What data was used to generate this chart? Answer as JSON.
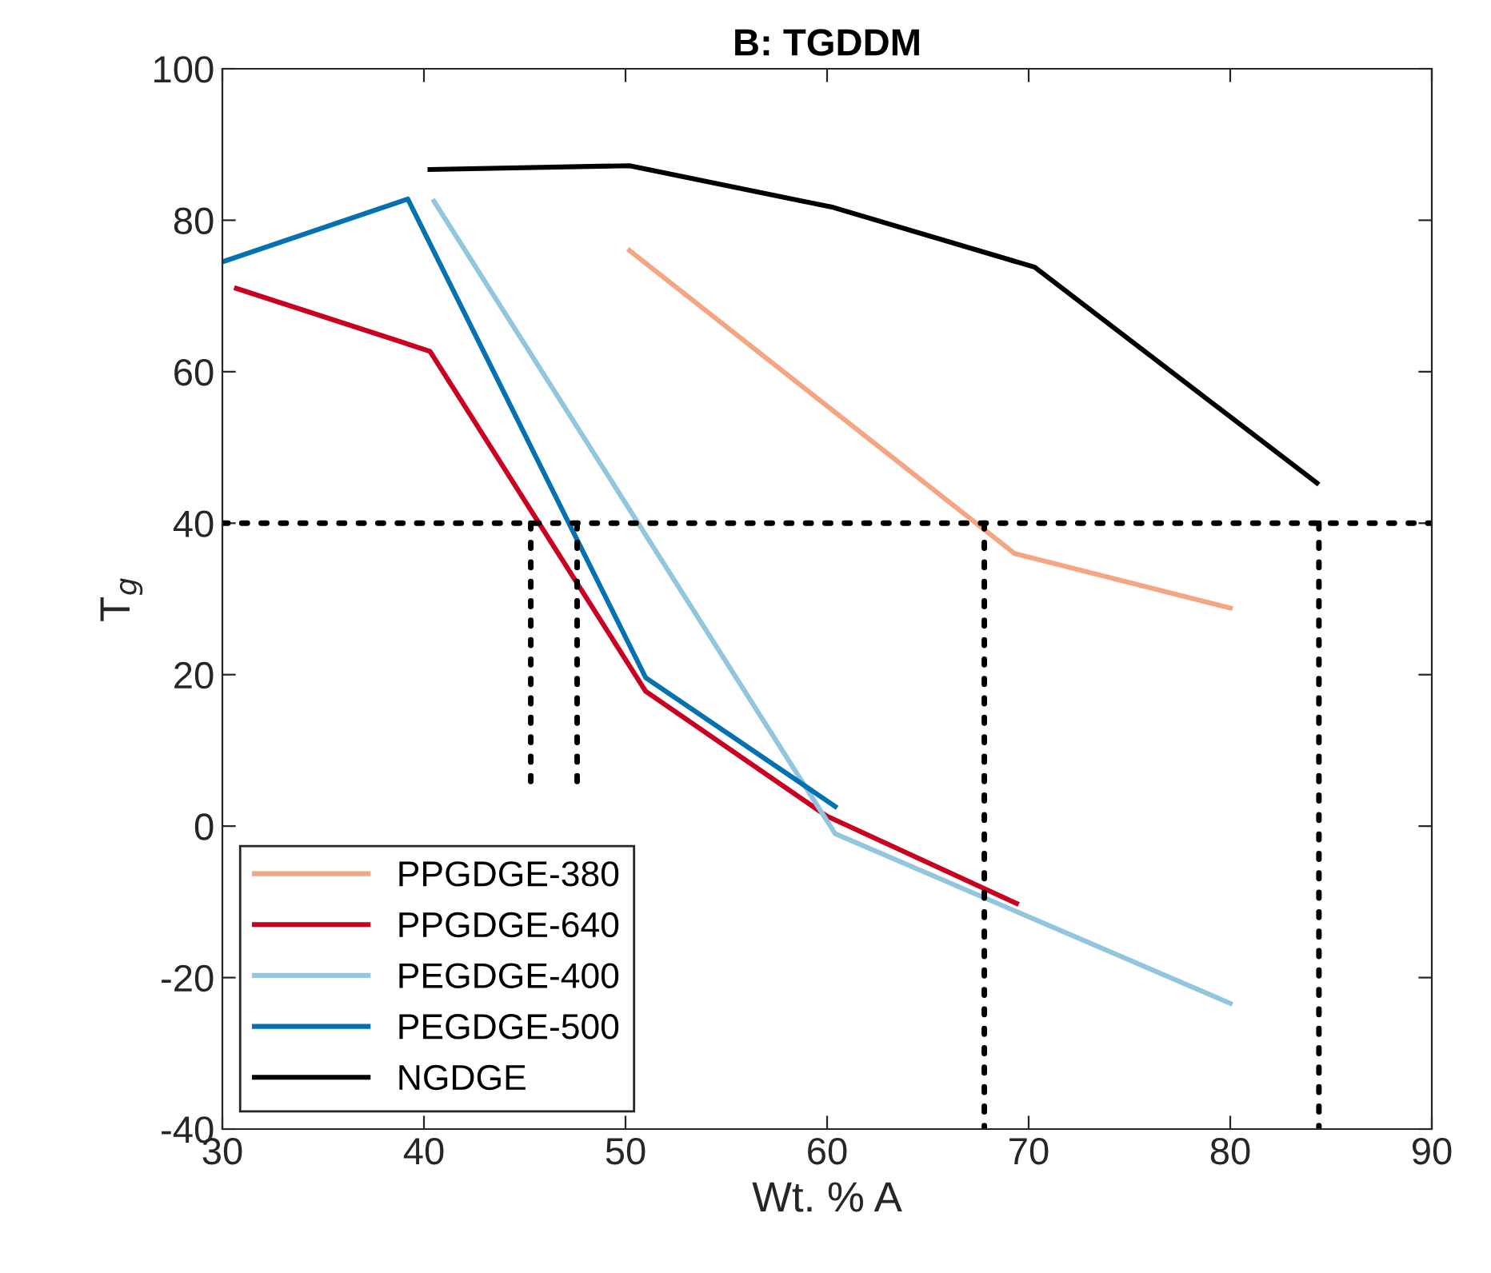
{
  "chart_data": {
    "type": "line",
    "title": "B: TGDDM",
    "xlabel": "Wt. % A",
    "ylabel": "T$_{g}$",
    "xlim": [
      30,
      90
    ],
    "xticks": [
      30,
      40,
      50,
      60,
      70,
      80,
      90
    ],
    "ylim": [
      -40,
      100
    ],
    "yticks": [
      -40,
      -20,
      0,
      20,
      40,
      60,
      80,
      100
    ],
    "grid": false,
    "legend": "bottom left",
    "line_style": "solid",
    "ref_lines": [
      {
        "axis": "y",
        "value": 40,
        "color": "#000000",
        "line_style": "dotted"
      }
    ],
    "series": [
      {
        "name": "PPGDGE-380",
        "color": "#f4a582",
        "x": [
          50.2,
          69.3,
          80
        ],
        "values": [
          76,
          36,
          28.8
        ]
      },
      {
        "name": "PPGDGE-640",
        "color": "#ca0020",
        "x": [
          30.7,
          40.3,
          51,
          60,
          69.4
        ],
        "values": [
          71,
          62.7,
          17.8,
          1.3,
          -10.2
        ]
      },
      {
        "name": "PEGDGE-400",
        "color": "#92c5de",
        "x": [
          40.5,
          60.4,
          80
        ],
        "values": [
          82.5,
          -1,
          -23.4
        ]
      },
      {
        "name": "PEGDGE-500",
        "color": "#0571b0",
        "x": [
          30,
          39.2,
          51,
          60.4
        ],
        "values": [
          74.5,
          82.8,
          19.6,
          2.6
        ]
      },
      {
        "name": "NGDGE",
        "color": "#000000",
        "x": [
          40.3,
          50.2,
          60.3,
          70.3,
          84.3
        ],
        "values": [
          86.7,
          87.2,
          81.7,
          73.8,
          45.3
        ]
      },
      {
        "color": "#000000",
        "line_style": "dotted",
        "x": [
          45.3,
          45.3
        ],
        "values": [
          40,
          5.5
        ]
      },
      {
        "color": "#000000",
        "line_style": "dotted",
        "x": [
          47.6,
          47.6
        ],
        "values": [
          40,
          5.5
        ]
      },
      {
        "color": "#000000",
        "line_style": "dotted",
        "x": [
          67.8,
          67.8
        ],
        "values": [
          40,
          -40
        ]
      },
      {
        "color": "#000000",
        "line_style": "dotted",
        "x": [
          84.4,
          84.4
        ],
        "values": [
          40,
          -40
        ]
      }
    ]
  }
}
